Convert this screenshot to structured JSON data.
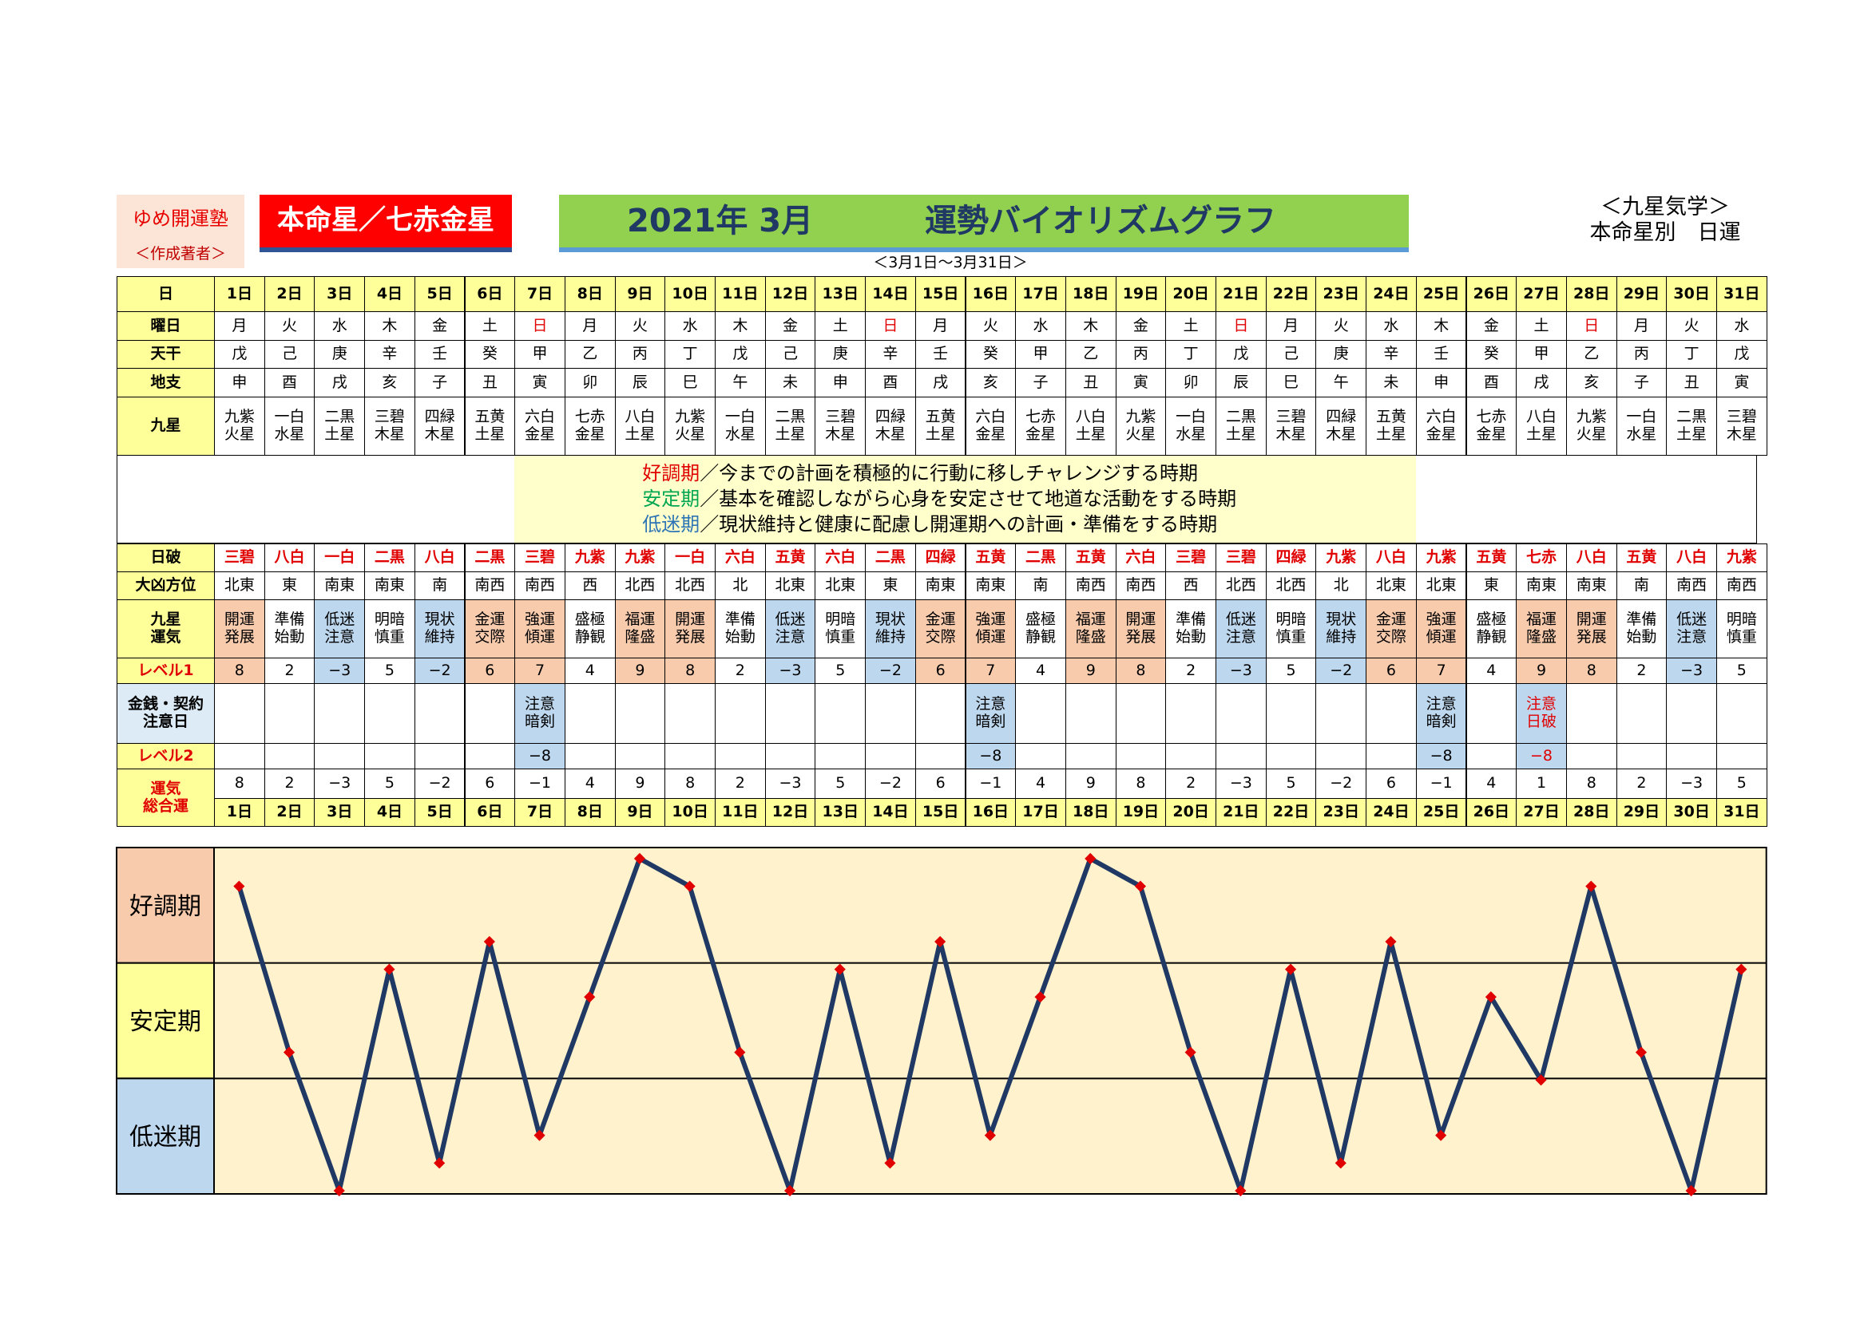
{
  "header": {
    "author_name": "ゆめ開運塾",
    "author_sub": "＜作成著者＞",
    "honmei": "本命星／七赤金星",
    "year_month": "2021年 3月",
    "title": "運勢バイオリズムグラフ",
    "range": "＜3月1日～3月31日＞",
    "category": "＜九星気学＞",
    "subtitle": "本命星別　日運"
  },
  "labels": {
    "day": "日",
    "weekday": "曜日",
    "tenkan": "天干",
    "chishi": "地支",
    "kyusei": "九星",
    "nippa": "日破",
    "taikyo": "大凶方位",
    "unki": "九星\n運気",
    "level1": "レベル1",
    "kinsen": "金銭・契約\n注意日",
    "level2": "レベル2",
    "sogo": "運気\n総合運"
  },
  "legend": [
    {
      "term": "好調期",
      "text": "／今までの計画を積極的に行動に移しチャレンジする時期"
    },
    {
      "term": "安定期",
      "text": "／基本を確認しながら心身を安定させて地道な活動をする時期"
    },
    {
      "term": "低迷期",
      "text": "／現状維持と健康に配慮し開運期への計画・準備をする時期"
    }
  ],
  "plot_labels": [
    "好調期",
    "安定期",
    "低迷期"
  ],
  "colors": {
    "good": "#f8cbad",
    "stable": "#ffff99",
    "low": "#bdd7ee",
    "line": "#1f3864",
    "marker": "#e00000",
    "plot_bg": "#fff2cc"
  },
  "days": [
    "1日",
    "2日",
    "3日",
    "4日",
    "5日",
    "6日",
    "7日",
    "8日",
    "9日",
    "10日",
    "11日",
    "12日",
    "13日",
    "14日",
    "15日",
    "16日",
    "17日",
    "18日",
    "19日",
    "20日",
    "21日",
    "22日",
    "23日",
    "24日",
    "25日",
    "26日",
    "27日",
    "28日",
    "29日",
    "30日",
    "31日"
  ],
  "weekdays": [
    "月",
    "火",
    "水",
    "木",
    "金",
    "土",
    "日",
    "月",
    "火",
    "水",
    "木",
    "金",
    "土",
    "日",
    "月",
    "火",
    "水",
    "木",
    "金",
    "土",
    "日",
    "月",
    "火",
    "水",
    "木",
    "金",
    "土",
    "日",
    "月",
    "火",
    "水"
  ],
  "tenkan": [
    "戊",
    "己",
    "庚",
    "辛",
    "壬",
    "癸",
    "甲",
    "乙",
    "丙",
    "丁",
    "戊",
    "己",
    "庚",
    "辛",
    "壬",
    "癸",
    "甲",
    "乙",
    "丙",
    "丁",
    "戊",
    "己",
    "庚",
    "辛",
    "壬",
    "癸",
    "甲",
    "乙",
    "丙",
    "丁",
    "戊"
  ],
  "chishi": [
    "申",
    "酉",
    "戌",
    "亥",
    "子",
    "丑",
    "寅",
    "卯",
    "辰",
    "巳",
    "午",
    "未",
    "申",
    "酉",
    "戌",
    "亥",
    "子",
    "丑",
    "寅",
    "卯",
    "辰",
    "巳",
    "午",
    "未",
    "申",
    "酉",
    "戌",
    "亥",
    "子",
    "丑",
    "寅"
  ],
  "kyusei": [
    "九紫\n火星",
    "一白\n水星",
    "二黒\n土星",
    "三碧\n木星",
    "四緑\n木星",
    "五黄\n土星",
    "六白\n金星",
    "七赤\n金星",
    "八白\n土星",
    "九紫\n火星",
    "一白\n水星",
    "二黒\n土星",
    "三碧\n木星",
    "四緑\n木星",
    "五黄\n土星",
    "六白\n金星",
    "七赤\n金星",
    "八白\n土星",
    "九紫\n火星",
    "一白\n水星",
    "二黒\n土星",
    "三碧\n木星",
    "四緑\n木星",
    "五黄\n土星",
    "六白\n金星",
    "七赤\n金星",
    "八白\n土星",
    "九紫\n火星",
    "一白\n水星",
    "二黒\n土星",
    "三碧\n木星"
  ],
  "nippa": [
    "三碧",
    "八白",
    "一白",
    "二黒",
    "八白",
    "二黒",
    "三碧",
    "九紫",
    "九紫",
    "一白",
    "六白",
    "五黄",
    "六白",
    "二黒",
    "四緑",
    "五黄",
    "二黒",
    "五黄",
    "六白",
    "三碧",
    "三碧",
    "四緑",
    "九紫",
    "八白",
    "九紫",
    "五黄",
    "七赤",
    "八白",
    "五黄",
    "八白",
    "九紫"
  ],
  "taikyo": [
    "北東",
    "東",
    "南東",
    "南東",
    "南",
    "南西",
    "南西",
    "西",
    "北西",
    "北西",
    "北",
    "北東",
    "北東",
    "東",
    "南東",
    "南東",
    "南",
    "南西",
    "南西",
    "西",
    "北西",
    "北西",
    "北",
    "北東",
    "北東",
    "東",
    "南東",
    "南東",
    "南",
    "南西",
    "南西"
  ],
  "unki": [
    "開運\n発展",
    "準備\n始動",
    "低迷\n注意",
    "明暗\n慎重",
    "現状\n維持",
    "金運\n交際",
    "強運\n傾運",
    "盛極\n静観",
    "福運\n隆盛",
    "開運\n発展",
    "準備\n始動",
    "低迷\n注意",
    "明暗\n慎重",
    "現状\n維持",
    "金運\n交際",
    "強運\n傾運",
    "盛極\n静観",
    "福運\n隆盛",
    "開運\n発展",
    "準備\n始動",
    "低迷\n注意",
    "明暗\n慎重",
    "現状\n維持",
    "金運\n交際",
    "強運\n傾運",
    "盛極\n静観",
    "福運\n隆盛",
    "開運\n発展",
    "準備\n始動",
    "低迷\n注意",
    "明暗\n慎重"
  ],
  "level1": [
    "8",
    "2",
    "−3",
    "5",
    "−2",
    "6",
    "7",
    "4",
    "9",
    "8",
    "2",
    "−3",
    "5",
    "−2",
    "6",
    "7",
    "4",
    "9",
    "8",
    "2",
    "−3",
    "5",
    "−2",
    "6",
    "7",
    "4",
    "9",
    "8",
    "2",
    "−3",
    "5"
  ],
  "kinsen": [
    "",
    "",
    "",
    "",
    "",
    "",
    "注意\n暗剣",
    "",
    "",
    "",
    "",
    "",
    "",
    "",
    "",
    "注意\n暗剣",
    "",
    "",
    "",
    "",
    "",
    "",
    "",
    "",
    "注意\n暗剣",
    "",
    "注意\n日破",
    "",
    "",
    "",
    ""
  ],
  "level2": [
    "",
    "",
    "",
    "",
    "",
    "",
    "−8",
    "",
    "",
    "",
    "",
    "",
    "",
    "",
    "",
    "−8",
    "",
    "",
    "",
    "",
    "",
    "",
    "",
    "",
    "−8",
    "",
    "−8",
    "",
    "",
    "",
    ""
  ],
  "sogo": [
    "8",
    "2",
    "−3",
    "5",
    "−2",
    "6",
    "−1",
    "4",
    "9",
    "8",
    "2",
    "−3",
    "5",
    "−2",
    "6",
    "−1",
    "4",
    "9",
    "8",
    "2",
    "−3",
    "5",
    "−2",
    "6",
    "−1",
    "4",
    "1",
    "8",
    "2",
    "−3",
    "5"
  ],
  "chart_data": {
    "type": "line",
    "title": "運勢バイオリズムグラフ",
    "x": [
      "1日",
      "2日",
      "3日",
      "4日",
      "5日",
      "6日",
      "7日",
      "8日",
      "9日",
      "10日",
      "11日",
      "12日",
      "13日",
      "14日",
      "15日",
      "16日",
      "17日",
      "18日",
      "19日",
      "20日",
      "21日",
      "22日",
      "23日",
      "24日",
      "25日",
      "26日",
      "27日",
      "28日",
      "29日",
      "30日",
      "31日"
    ],
    "series": [
      {
        "values": [
          8,
          2,
          -3,
          5,
          -2,
          6,
          -1,
          4,
          9,
          8,
          2,
          -3,
          5,
          -2,
          6,
          -1,
          4,
          9,
          8,
          2,
          -3,
          5,
          -2,
          6,
          -1,
          4,
          1,
          8,
          2,
          -3,
          5
        ]
      }
    ],
    "ylim": [
      -3,
      9
    ],
    "bands": [
      "好調期",
      "安定期",
      "低迷期"
    ],
    "grid": true
  }
}
